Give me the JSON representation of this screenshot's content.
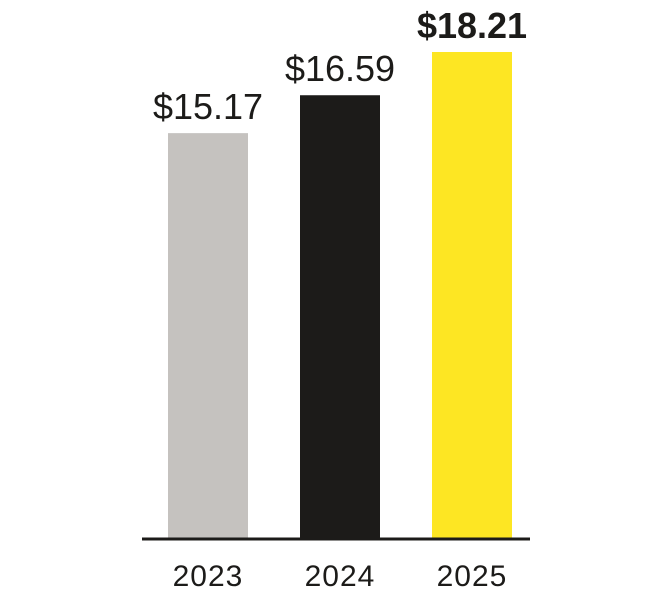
{
  "chart_data": {
    "type": "bar",
    "title": "",
    "xlabel": "",
    "ylabel": "",
    "categories": [
      "2023",
      "2024",
      "2025"
    ],
    "values": [
      15.17,
      16.59,
      18.21
    ],
    "value_labels": [
      "$15.17",
      "$16.59",
      "$18.21"
    ],
    "emphasized_value_index": 2,
    "bar_colors": [
      "#c5c2bf",
      "#1c1b19",
      "#fde623"
    ],
    "axis_color": "#1c1b19",
    "text_color": "#1c1b19",
    "ylim": [
      0,
      18.21
    ],
    "grid": false,
    "legend": "none"
  }
}
